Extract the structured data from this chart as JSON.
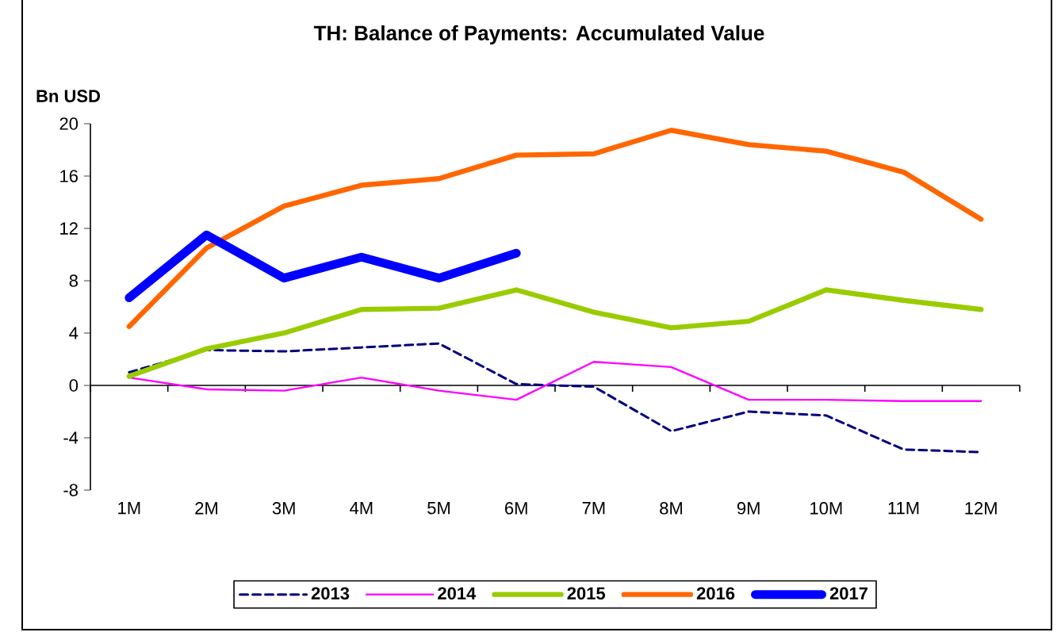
{
  "chart_data": {
    "type": "line",
    "title": "TH: Balance of Payments: Accumulated Value",
    "ylabel": "Bn USD",
    "categories": [
      "1M",
      "2M",
      "3M",
      "4M",
      "5M",
      "6M",
      "7M",
      "8M",
      "9M",
      "10M",
      "11M",
      "12M"
    ],
    "ylim": [
      -8,
      20
    ],
    "yticks": [
      -8,
      -4,
      0,
      4,
      8,
      12,
      16,
      20
    ],
    "ref_lines": [
      {
        "axis": "y",
        "value": 0,
        "color": "#000000"
      }
    ],
    "legend": "bottom",
    "marker": "none",
    "series": [
      {
        "name": "2013",
        "color": "#000080",
        "line_style": "dashed",
        "values": [
          1.0,
          2.7,
          2.6,
          2.9,
          3.2,
          0.1,
          -0.1,
          -3.5,
          -2.0,
          -2.3,
          -4.9,
          -5.1
        ]
      },
      {
        "name": "2014",
        "color": "#ff00ff",
        "line_style": "solid",
        "values": [
          0.6,
          -0.3,
          -0.4,
          0.6,
          -0.4,
          -1.1,
          1.8,
          1.4,
          -1.1,
          -1.1,
          -1.2,
          -1.2
        ]
      },
      {
        "name": "2015",
        "color": "#99cc00",
        "line_style": "solid",
        "values": [
          0.7,
          2.8,
          4.0,
          5.8,
          5.9,
          7.3,
          5.6,
          4.4,
          4.9,
          7.3,
          6.5,
          5.8
        ]
      },
      {
        "name": "2016",
        "color": "#ff6600",
        "line_style": "solid",
        "values": [
          4.5,
          10.5,
          13.7,
          15.3,
          15.8,
          17.6,
          17.7,
          19.5,
          18.4,
          17.9,
          16.3,
          12.7
        ]
      },
      {
        "name": "2017",
        "color": "#0000ff",
        "line_style": "solid",
        "values": [
          6.7,
          11.5,
          8.2,
          9.8,
          8.2,
          10.1,
          null,
          null,
          null,
          null,
          null,
          null
        ]
      }
    ]
  }
}
